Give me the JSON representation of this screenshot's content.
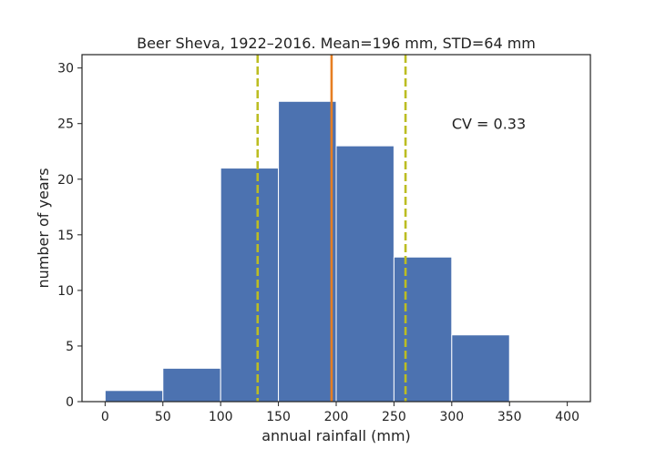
{
  "chart_data": {
    "type": "bar",
    "title": "Beer Sheva, 1922–2016. Mean=196 mm, STD=64 mm",
    "xlabel": "annual rainfall (mm)",
    "ylabel": "number of years",
    "bins": [
      {
        "start": 0,
        "end": 50,
        "count": 1
      },
      {
        "start": 50,
        "end": 100,
        "count": 3
      },
      {
        "start": 100,
        "end": 150,
        "count": 21
      },
      {
        "start": 150,
        "end": 200,
        "count": 27
      },
      {
        "start": 200,
        "end": 250,
        "count": 23
      },
      {
        "start": 250,
        "end": 300,
        "count": 13
      },
      {
        "start": 300,
        "end": 350,
        "count": 6
      }
    ],
    "xlim": [
      -20,
      420
    ],
    "ylim": [
      0,
      31.2
    ],
    "xticks": [
      0,
      50,
      100,
      150,
      200,
      250,
      300,
      350,
      400
    ],
    "yticks": [
      0,
      5,
      10,
      15,
      20,
      25,
      30
    ],
    "mean_line": 196,
    "std_lines": [
      132,
      260
    ],
    "annotation": {
      "text": "CV = 0.33",
      "x": 300,
      "y": 25
    },
    "grid": false,
    "colors": {
      "bar": "#4c72b0",
      "bar_edge": "#ffffff",
      "mean": "#e67e22",
      "std": "#bcbd22",
      "axis": "#222222"
    }
  }
}
